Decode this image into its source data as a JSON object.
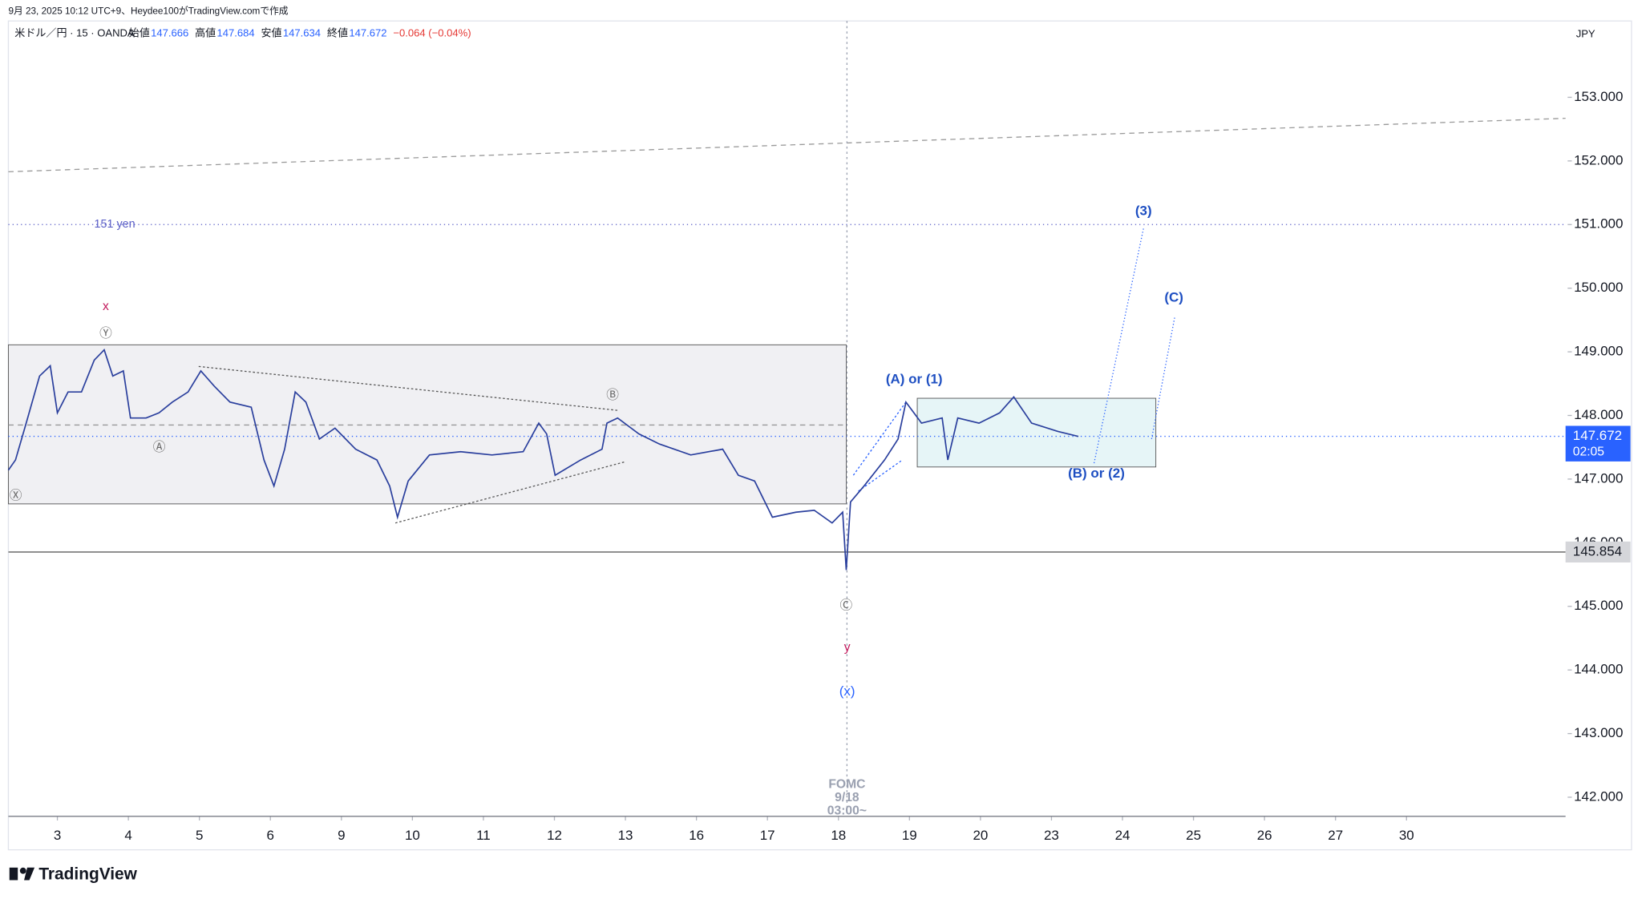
{
  "chart_data": {
    "type": "line",
    "header": "9月 23, 2025 10:12 UTC+9、Heydee100がTradingView.comで作成",
    "symbol": "米ドル／円 · 15 · OANDA",
    "ohlc": [
      {
        "label": "始値",
        "value": "147.666"
      },
      {
        "label": "高値",
        "value": "147.684"
      },
      {
        "label": "安値",
        "value": "147.634"
      },
      {
        "label": "終値",
        "value": "147.672"
      }
    ],
    "change": "−0.064 (−0.04%)",
    "currency": "JPY",
    "brand": "TradingView",
    "xlim": [
      -0.69,
      21.24
    ],
    "ylim": [
      141.7,
      154.2
    ],
    "xticks": [
      {
        "value": 0,
        "label": "3"
      },
      {
        "value": 1,
        "label": "4"
      },
      {
        "value": 2,
        "label": "5"
      },
      {
        "value": 3,
        "label": "6"
      },
      {
        "value": 4,
        "label": "9"
      },
      {
        "value": 5,
        "label": "10"
      },
      {
        "value": 6,
        "label": "11"
      },
      {
        "value": 7,
        "label": "12"
      },
      {
        "value": 8,
        "label": "13"
      },
      {
        "value": 9,
        "label": "16"
      },
      {
        "value": 10,
        "label": "17"
      },
      {
        "value": 11,
        "label": "18"
      },
      {
        "value": 12,
        "label": "19"
      },
      {
        "value": 13,
        "label": "20"
      },
      {
        "value": 14,
        "label": "23"
      },
      {
        "value": 15,
        "label": "24"
      },
      {
        "value": 16,
        "label": "25"
      },
      {
        "value": 17,
        "label": "26"
      },
      {
        "value": 18,
        "label": "27"
      },
      {
        "value": 19,
        "label": "30"
      }
    ],
    "yticks": [
      {
        "value": 142,
        "label": "142.000"
      },
      {
        "value": 143,
        "label": "143.000"
      },
      {
        "value": 144,
        "label": "144.000"
      },
      {
        "value": 145,
        "label": "145.000"
      },
      {
        "value": 146,
        "label": "146.000"
      },
      {
        "value": 147,
        "label": "147.000"
      },
      {
        "value": 148,
        "label": "148.000"
      },
      {
        "value": 149,
        "label": "149.000"
      },
      {
        "value": 150,
        "label": "150.000"
      },
      {
        "value": 151,
        "label": "151.000"
      },
      {
        "value": 152,
        "label": "152.000"
      },
      {
        "value": 153,
        "label": "153.000"
      }
    ],
    "series": [
      {
        "name": "USD/JPY",
        "color": "#2a3f9d",
        "x": [
          -0.69,
          -0.59,
          -0.44,
          -0.25,
          -0.1,
          0,
          0.15,
          0.34,
          0.52,
          0.66,
          0.78,
          0.93,
          1.03,
          1.25,
          1.43,
          1.62,
          1.84,
          2.02,
          2.21,
          2.43,
          2.73,
          2.91,
          3.05,
          3.2,
          3.35,
          3.5,
          3.69,
          3.91,
          4.2,
          4.5,
          4.68,
          4.79,
          4.94,
          5.24,
          5.68,
          6.12,
          6.56,
          6.78,
          6.89,
          7.01,
          7.37,
          7.67,
          7.74,
          7.89,
          8.19,
          8.48,
          8.92,
          9.37,
          9.59,
          9.82,
          10.07,
          10.4,
          10.66,
          10.91,
          11.06,
          11.11,
          11.17,
          11.36,
          11.65,
          11.84,
          11.95,
          12.17,
          12.46,
          12.54,
          12.68,
          12.98,
          13.27,
          13.47,
          13.72,
          14.09,
          14.38
        ],
        "values": [
          147.14,
          147.3,
          147.88,
          148.62,
          148.78,
          148.04,
          148.37,
          148.37,
          148.87,
          149.03,
          148.62,
          148.7,
          147.96,
          147.96,
          148.04,
          148.21,
          148.37,
          148.7,
          148.46,
          148.21,
          148.13,
          147.3,
          146.89,
          147.47,
          148.37,
          148.21,
          147.63,
          147.8,
          147.47,
          147.3,
          146.89,
          146.4,
          146.97,
          147.38,
          147.43,
          147.38,
          147.43,
          147.88,
          147.71,
          147.06,
          147.3,
          147.47,
          147.88,
          147.96,
          147.71,
          147.55,
          147.38,
          147.47,
          147.06,
          146.97,
          146.4,
          146.48,
          146.51,
          146.31,
          146.48,
          145.57,
          146.64,
          146.89,
          147.3,
          147.63,
          148.21,
          147.88,
          147.96,
          147.3,
          147.96,
          147.88,
          148.04,
          148.29,
          147.88,
          147.75,
          147.67
        ]
      }
    ],
    "boxes": [
      {
        "x": [
          -0.69,
          11.11
        ],
        "y": [
          146.61,
          149.11
        ],
        "color": "#e9eaee"
      },
      {
        "x": [
          12.11,
          15.47
        ],
        "y": [
          147.19,
          148.27
        ],
        "color": "#dcf1f4"
      }
    ],
    "hlines": [
      {
        "value": 151,
        "label": "151 yen",
        "color": "#5b5fc7",
        "dash": "1 3"
      },
      {
        "value": 145.854,
        "label": "145.854",
        "color": "#888888",
        "dash": "none"
      },
      {
        "value": 147.672,
        "label": "147.672",
        "time": "02:05",
        "color": "#2962ff",
        "dash": "1 3"
      },
      {
        "value": 147.85,
        "color": "#999999",
        "dash": "5 4"
      }
    ],
    "segments": [
      {
        "x": [
          -0.69,
          21.24
        ],
        "y": [
          151.83,
          152.67
        ],
        "color": "#999999",
        "dash": "5 4"
      },
      {
        "x": [
          1.99,
          7.89
        ],
        "y": [
          148.77,
          148.08
        ],
        "color": "#555555",
        "dash": "2 2"
      },
      {
        "x": [
          4.76,
          7.99
        ],
        "y": [
          146.31,
          147.27
        ],
        "color": "#555555",
        "dash": "2 2"
      },
      {
        "x": [
          11.21,
          11.95
        ],
        "y": [
          147.06,
          148.21
        ],
        "color": "#2962ff",
        "dash": "2 2"
      },
      {
        "x": [
          11.28,
          11.9
        ],
        "y": [
          146.81,
          147.3
        ],
        "color": "#2962ff",
        "dash": "2 2"
      },
      {
        "x": [
          14.6,
          15.3
        ],
        "y": [
          147.25,
          150.96
        ],
        "color": "#2962ff",
        "dash": "1 2"
      },
      {
        "x": [
          15.41,
          15.74
        ],
        "y": [
          147.63,
          149.57
        ],
        "color": "#2962ff",
        "dash": "1 2"
      }
    ],
    "vline": {
      "x": 11.12,
      "labels": [
        "FOMC",
        "9/18",
        "03:00~"
      ]
    },
    "annotations": [
      {
        "text": "x",
        "color": "#c2185b"
      },
      {
        "text": "Ⓨ",
        "color": "#666666"
      },
      {
        "text": "Ⓐ",
        "color": "#666666"
      },
      {
        "text": "Ⓑ",
        "color": "#666666"
      },
      {
        "text": "Ⓒ",
        "color": "#666666"
      },
      {
        "text": "Ⓧ",
        "color": "#666666"
      },
      {
        "text": "y",
        "color": "#c2185b"
      },
      {
        "text": "(x)",
        "color": "#2962ff"
      },
      {
        "text": "(A) or (1)",
        "color": "#1e4fc2"
      },
      {
        "text": "(B) or (2)",
        "color": "#1e4fc2"
      },
      {
        "text": "(3)",
        "color": "#1e4fc2"
      },
      {
        "text": "(C)",
        "color": "#1e4fc2"
      }
    ]
  }
}
